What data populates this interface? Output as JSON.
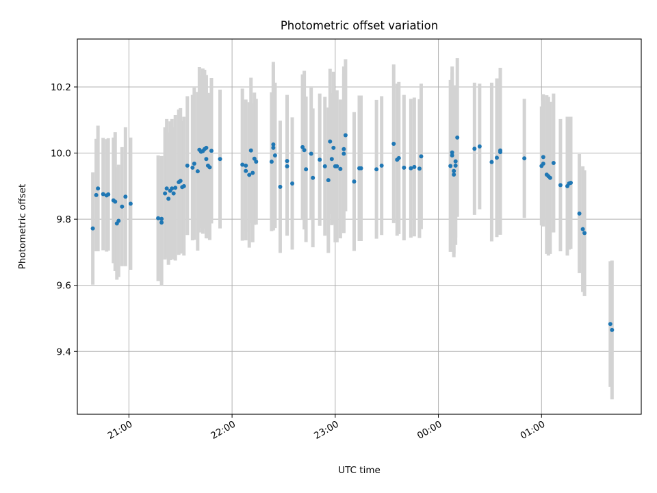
{
  "chart_data": {
    "type": "scatter",
    "title": "Photometric offset variation",
    "xlabel": "UTC time",
    "ylabel": "Photometric offset",
    "xlim": [
      "20:30",
      "01:58"
    ],
    "ylim": [
      9.21,
      10.345
    ],
    "grid": true,
    "x_ticks": [
      "21:00",
      "22:00",
      "23:00",
      "00:00",
      "01:00"
    ],
    "y_ticks": [
      "9.4",
      "9.6",
      "9.8",
      "10.0",
      "10.2"
    ],
    "x_tick_minutes": [
      1260,
      1320,
      1380,
      1440,
      1500
    ],
    "y_tick_values": [
      9.4,
      9.6,
      9.8,
      10.0,
      10.2
    ],
    "colors": {
      "points": "#1f77b4",
      "errorbars": "#d3d3d3"
    },
    "points": [
      {
        "x": "20:39",
        "y": 9.772,
        "err": 0.17
      },
      {
        "x": "20:41",
        "y": 9.873,
        "err": 0.17
      },
      {
        "x": "20:42",
        "y": 9.893,
        "err": 0.19
      },
      {
        "x": "20:45",
        "y": 9.876,
        "err": 0.17
      },
      {
        "x": "20:47",
        "y": 9.872,
        "err": 0.17
      },
      {
        "x": "20:48",
        "y": 9.875,
        "err": 0.17
      },
      {
        "x": "20:51",
        "y": 9.857,
        "err": 0.19
      },
      {
        "x": "20:52",
        "y": 9.853,
        "err": 0.21
      },
      {
        "x": "20:53",
        "y": 9.787,
        "err": 0.17
      },
      {
        "x": "20:54",
        "y": 9.795,
        "err": 0.17
      },
      {
        "x": "20:56",
        "y": 9.838,
        "err": 0.18
      },
      {
        "x": "20:58",
        "y": 9.868,
        "err": 0.21
      },
      {
        "x": "21:01",
        "y": 9.847,
        "err": 0.2
      },
      {
        "x": "21:17",
        "y": 9.803,
        "err": 0.19
      },
      {
        "x": "21:19",
        "y": 9.79,
        "err": 0.19
      },
      {
        "x": "21:19",
        "y": 9.801,
        "err": 0.19
      },
      {
        "x": "21:21",
        "y": 9.878,
        "err": 0.2
      },
      {
        "x": "21:22",
        "y": 9.893,
        "err": 0.21
      },
      {
        "x": "21:23",
        "y": 9.862,
        "err": 0.2
      },
      {
        "x": "21:24",
        "y": 9.886,
        "err": 0.21
      },
      {
        "x": "21:25",
        "y": 9.893,
        "err": 0.21
      },
      {
        "x": "21:26",
        "y": 9.878,
        "err": 0.2
      },
      {
        "x": "21:27",
        "y": 9.895,
        "err": 0.22
      },
      {
        "x": "21:29",
        "y": 9.912,
        "err": 0.22
      },
      {
        "x": "21:30",
        "y": 9.916,
        "err": 0.22
      },
      {
        "x": "21:31",
        "y": 9.897,
        "err": 0.2
      },
      {
        "x": "21:32",
        "y": 9.9,
        "err": 0.21
      },
      {
        "x": "21:34",
        "y": 9.962,
        "err": 0.21
      },
      {
        "x": "21:37",
        "y": 9.956,
        "err": 0.22
      },
      {
        "x": "21:38",
        "y": 9.968,
        "err": 0.23
      },
      {
        "x": "21:40",
        "y": 9.945,
        "err": 0.24
      },
      {
        "x": "21:41",
        "y": 10.01,
        "err": 0.25
      },
      {
        "x": "21:42",
        "y": 10.004,
        "err": 0.23
      },
      {
        "x": "21:43",
        "y": 10.006,
        "err": 0.25
      },
      {
        "x": "21:44",
        "y": 10.012,
        "err": 0.24
      },
      {
        "x": "21:45",
        "y": 9.982,
        "err": 0.24
      },
      {
        "x": "21:45",
        "y": 10.016,
        "err": 0.22
      },
      {
        "x": "21:46",
        "y": 9.962,
        "err": 0.22
      },
      {
        "x": "21:47",
        "y": 9.957,
        "err": 0.22
      },
      {
        "x": "21:48",
        "y": 10.007,
        "err": 0.22
      },
      {
        "x": "21:53",
        "y": 9.982,
        "err": 0.21
      },
      {
        "x": "22:06",
        "y": 9.965,
        "err": 0.23
      },
      {
        "x": "22:08",
        "y": 9.962,
        "err": 0.2
      },
      {
        "x": "22:08",
        "y": 9.946,
        "err": 0.21
      },
      {
        "x": "22:10",
        "y": 9.934,
        "err": 0.22
      },
      {
        "x": "22:11",
        "y": 10.008,
        "err": 0.22
      },
      {
        "x": "22:12",
        "y": 9.94,
        "err": 0.21
      },
      {
        "x": "22:13",
        "y": 9.983,
        "err": 0.2
      },
      {
        "x": "22:14",
        "y": 9.974,
        "err": 0.19
      },
      {
        "x": "22:23",
        "y": 9.974,
        "err": 0.21
      },
      {
        "x": "22:24",
        "y": 10.016,
        "err": 0.25
      },
      {
        "x": "22:24",
        "y": 10.026,
        "err": 0.25
      },
      {
        "x": "22:25",
        "y": 9.993,
        "err": 0.22
      },
      {
        "x": "22:28",
        "y": 9.898,
        "err": 0.2
      },
      {
        "x": "22:32",
        "y": 9.96,
        "err": 0.21
      },
      {
        "x": "22:32",
        "y": 9.976,
        "err": 0.2
      },
      {
        "x": "22:35",
        "y": 9.908,
        "err": 0.2
      },
      {
        "x": "22:41",
        "y": 10.018,
        "err": 0.22
      },
      {
        "x": "22:42",
        "y": 10.009,
        "err": 0.24
      },
      {
        "x": "22:43",
        "y": 9.951,
        "err": 0.22
      },
      {
        "x": "22:46",
        "y": 9.998,
        "err": 0.2
      },
      {
        "x": "22:47",
        "y": 9.925,
        "err": 0.21
      },
      {
        "x": "22:51",
        "y": 9.98,
        "err": 0.2
      },
      {
        "x": "22:54",
        "y": 9.96,
        "err": 0.21
      },
      {
        "x": "22:56",
        "y": 9.918,
        "err": 0.22
      },
      {
        "x": "22:57",
        "y": 10.035,
        "err": 0.22
      },
      {
        "x": "22:58",
        "y": 9.982,
        "err": 0.2
      },
      {
        "x": "22:59",
        "y": 10.016,
        "err": 0.23
      },
      {
        "x": "23:00",
        "y": 9.96,
        "err": 0.23
      },
      {
        "x": "23:01",
        "y": 9.96,
        "err": 0.23
      },
      {
        "x": "23:03",
        "y": 9.952,
        "err": 0.21
      },
      {
        "x": "23:05",
        "y": 9.998,
        "err": 0.24
      },
      {
        "x": "23:05",
        "y": 10.012,
        "err": 0.25
      },
      {
        "x": "23:06",
        "y": 10.054,
        "err": 0.23
      },
      {
        "x": "23:11",
        "y": 9.914,
        "err": 0.21
      },
      {
        "x": "23:14",
        "y": 9.954,
        "err": 0.22
      },
      {
        "x": "23:15",
        "y": 9.954,
        "err": 0.22
      },
      {
        "x": "23:24",
        "y": 9.951,
        "err": 0.21
      },
      {
        "x": "23:27",
        "y": 9.962,
        "err": 0.21
      },
      {
        "x": "23:34",
        "y": 10.028,
        "err": 0.24
      },
      {
        "x": "23:36",
        "y": 9.98,
        "err": 0.23
      },
      {
        "x": "23:37",
        "y": 9.985,
        "err": 0.23
      },
      {
        "x": "23:40",
        "y": 9.956,
        "err": 0.22
      },
      {
        "x": "23:44",
        "y": 9.954,
        "err": 0.21
      },
      {
        "x": "23:46",
        "y": 9.958,
        "err": 0.21
      },
      {
        "x": "23:49",
        "y": 9.953,
        "err": 0.21
      },
      {
        "x": "23:50",
        "y": 9.99,
        "err": 0.22
      },
      {
        "x": "00:07",
        "y": 9.961,
        "err": 0.26
      },
      {
        "x": "00:08",
        "y": 10.002,
        "err": 0.26
      },
      {
        "x": "00:08",
        "y": 9.993,
        "err": 0.25
      },
      {
        "x": "00:09",
        "y": 9.935,
        "err": 0.25
      },
      {
        "x": "00:09",
        "y": 9.946,
        "err": 0.25
      },
      {
        "x": "00:10",
        "y": 9.962,
        "err": 0.24
      },
      {
        "x": "00:10",
        "y": 9.975,
        "err": 0.23
      },
      {
        "x": "00:11",
        "y": 10.047,
        "err": 0.24
      },
      {
        "x": "00:21",
        "y": 10.013,
        "err": 0.2
      },
      {
        "x": "00:24",
        "y": 10.02,
        "err": 0.19
      },
      {
        "x": "00:31",
        "y": 9.973,
        "err": 0.24
      },
      {
        "x": "00:34",
        "y": 9.986,
        "err": 0.24
      },
      {
        "x": "00:36",
        "y": 10.003,
        "err": 0.25
      },
      {
        "x": "00:36",
        "y": 10.008,
        "err": 0.25
      },
      {
        "x": "00:50",
        "y": 9.984,
        "err": 0.18
      },
      {
        "x": "01:00",
        "y": 9.961,
        "err": 0.18
      },
      {
        "x": "01:01",
        "y": 9.968,
        "err": 0.19
      },
      {
        "x": "01:01",
        "y": 9.988,
        "err": 0.19
      },
      {
        "x": "01:03",
        "y": 9.935,
        "err": 0.24
      },
      {
        "x": "01:04",
        "y": 9.93,
        "err": 0.24
      },
      {
        "x": "01:05",
        "y": 9.925,
        "err": 0.23
      },
      {
        "x": "01:07",
        "y": 9.97,
        "err": 0.21
      },
      {
        "x": "01:11",
        "y": 9.903,
        "err": 0.2
      },
      {
        "x": "01:15",
        "y": 9.9,
        "err": 0.21
      },
      {
        "x": "01:16",
        "y": 9.908,
        "err": 0.2
      },
      {
        "x": "01:17",
        "y": 9.91,
        "err": 0.2
      },
      {
        "x": "01:22",
        "y": 9.817,
        "err": 0.18
      },
      {
        "x": "01:24",
        "y": 9.77,
        "err": 0.19
      },
      {
        "x": "01:25",
        "y": 9.758,
        "err": 0.19
      },
      {
        "x": "01:40",
        "y": 9.483,
        "err": 0.19
      },
      {
        "x": "01:41",
        "y": 9.465,
        "err": 0.21
      }
    ]
  }
}
